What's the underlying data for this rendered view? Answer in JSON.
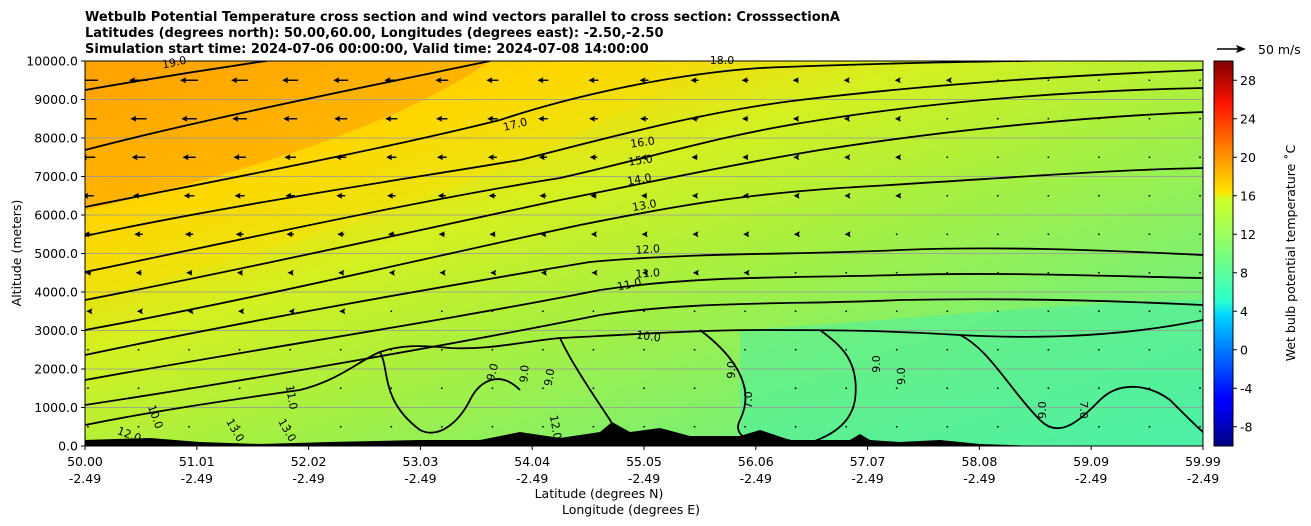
{
  "chart_data": {
    "type": "contour",
    "title_lines": [
      "Wetbulb Potential Temperature cross section and wind vectors parallel to cross section: CrosssectionA",
      "Latitudes (degrees north): 50.00,60.00, Longitudes (degrees east): -2.50,-2.50",
      "Simulation start time: 2024-07-06 00:00:00, Valid time: 2024-07-08 14:00:00"
    ],
    "ylabel": "Altitude (meters)",
    "xlabel_lat": "Latitude (degrees N)",
    "xlabel_lon": "Longitude (degrees E)",
    "ylim": [
      0,
      10000
    ],
    "y_ticks": [
      "0.0",
      "1000.0",
      "2000.0",
      "3000.0",
      "4000.0",
      "5000.0",
      "6000.0",
      "7000.0",
      "8000.0",
      "9000.0",
      "10000.0"
    ],
    "x_ticks_lat": [
      "50.00",
      "51.01",
      "52.02",
      "53.03",
      "54.04",
      "55.05",
      "56.06",
      "57.07",
      "58.08",
      "59.09",
      "59.99"
    ],
    "x_ticks_lon": [
      "-2.49",
      "-2.49",
      "-2.49",
      "-2.49",
      "-2.49",
      "-2.49",
      "-2.49",
      "-2.49",
      "-2.49",
      "-2.49",
      "-2.49"
    ],
    "grid": true,
    "colorbar": {
      "label": "Wet bulb potential temperature ˚C",
      "range": [
        -10,
        30
      ],
      "ticks": [
        "-8",
        "-4",
        "0",
        "4",
        "8",
        "12",
        "16",
        "20",
        "24",
        "28"
      ],
      "colormap": "jet"
    },
    "quiver_key": {
      "label": "50 m/s"
    },
    "contour_labels": [
      "19.0",
      "18.0",
      "17.0",
      "16.0",
      "15.0",
      "14.0",
      "13.0",
      "12.0",
      "11.0",
      "11.0",
      "10.0",
      "9.0",
      "9.0",
      "9.0",
      "9.0",
      "9.0",
      "9.0",
      "9.0",
      "7.0",
      "7.0",
      "10.0",
      "11.0",
      "12.0",
      "12.0",
      "13.0",
      "13.0"
    ]
  }
}
